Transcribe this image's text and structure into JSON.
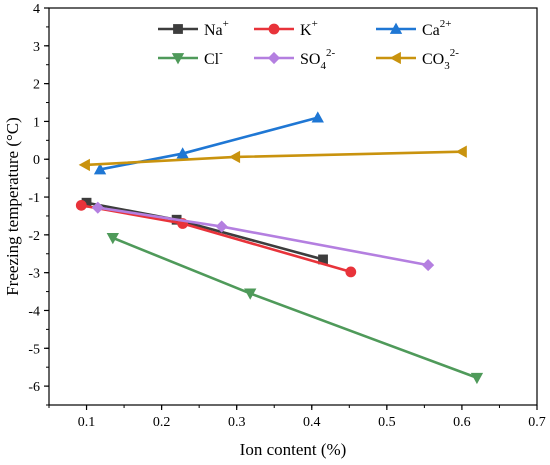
{
  "chart_data": {
    "type": "line",
    "title": "",
    "xlabel": "Ion content (%)",
    "ylabel": "Freezing temperature (°C)",
    "xlim": [
      0.05,
      0.7
    ],
    "ylim": [
      -6.5,
      4
    ],
    "x_ticks": [
      "0.1",
      "0.2",
      "0.3",
      "0.4",
      "0.5",
      "0.6",
      "0.7"
    ],
    "y_ticks": [
      "4",
      "3",
      "2",
      "1",
      "0",
      "-1",
      "-2",
      "-3",
      "-4",
      "-5",
      "-6"
    ],
    "grid": false,
    "legend_position": "top",
    "series": [
      {
        "name": "Na+",
        "base": "Na",
        "charge": "+",
        "sub": "",
        "marker": "square",
        "color": "#3d3d3d",
        "x": [
          0.1,
          0.22,
          0.415
        ],
        "y": [
          -1.15,
          -1.6,
          -2.65
        ]
      },
      {
        "name": "K+",
        "base": "K",
        "charge": "+",
        "sub": "",
        "marker": "circle",
        "color": "#e8333a",
        "x": [
          0.093,
          0.228,
          0.452
        ],
        "y": [
          -1.22,
          -1.7,
          -2.98
        ]
      },
      {
        "name": "Ca2+",
        "base": "Ca",
        "charge": "2+",
        "sub": "",
        "marker": "triangle-up",
        "color": "#1f77d4",
        "x": [
          0.118,
          0.228,
          0.408
        ],
        "y": [
          -0.27,
          0.15,
          1.1
        ]
      },
      {
        "name": "Cl-",
        "base": "Cl",
        "charge": "-",
        "sub": "",
        "marker": "triangle-down",
        "color": "#4f9a5a",
        "x": [
          0.135,
          0.318,
          0.62
        ],
        "y": [
          -2.08,
          -3.55,
          -5.78
        ]
      },
      {
        "name": "SO42-",
        "base": "SO",
        "charge": "2-",
        "sub": "4",
        "marker": "diamond",
        "color": "#b47fe0",
        "x": [
          0.115,
          0.28,
          0.555
        ],
        "y": [
          -1.28,
          -1.78,
          -2.8
        ]
      },
      {
        "name": "CO32-",
        "base": "CO",
        "charge": "2-",
        "sub": "3",
        "marker": "triangle-left",
        "color": "#c9930e",
        "x": [
          0.098,
          0.298,
          0.6
        ],
        "y": [
          -0.15,
          0.06,
          0.2
        ]
      }
    ]
  }
}
